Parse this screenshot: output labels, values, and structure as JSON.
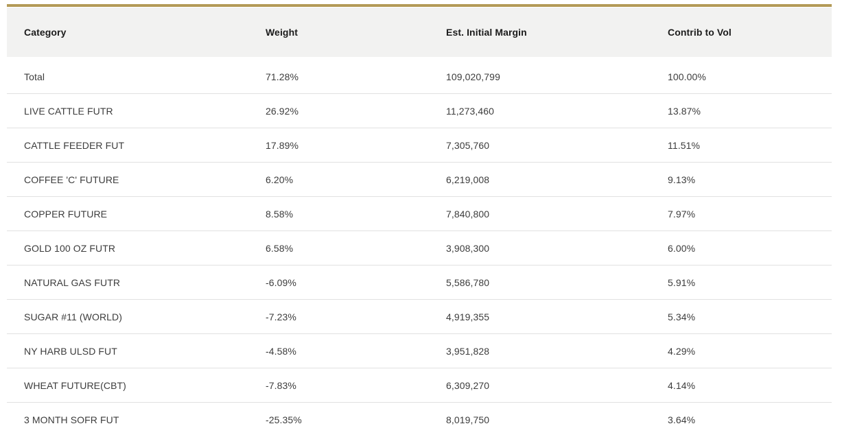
{
  "colors": {
    "top_rule": "#b39a57",
    "header_bg": "#f2f2f1",
    "divider": "#e1e1e1",
    "header_text": "#1b1b1b",
    "cell_text": "#3c3c3c"
  },
  "chart_data": {
    "type": "table",
    "columns": [
      "Category",
      "Weight",
      "Est. Initial Margin",
      "Contrib to Vol"
    ],
    "rows": [
      [
        "Total",
        "71.28%",
        "109,020,799",
        "100.00%"
      ],
      [
        "LIVE CATTLE FUTR",
        "26.92%",
        "11,273,460",
        "13.87%"
      ],
      [
        "CATTLE FEEDER FUT",
        "17.89%",
        "7,305,760",
        "11.51%"
      ],
      [
        "COFFEE 'C' FUTURE",
        "6.20%",
        "6,219,008",
        "9.13%"
      ],
      [
        "COPPER FUTURE",
        "8.58%",
        "7,840,800",
        "7.97%"
      ],
      [
        "GOLD 100 OZ FUTR",
        "6.58%",
        "3,908,300",
        "6.00%"
      ],
      [
        "NATURAL GAS FUTR",
        "-6.09%",
        "5,586,780",
        "5.91%"
      ],
      [
        "SUGAR #11 (WORLD)",
        "-7.23%",
        "4,919,355",
        "5.34%"
      ],
      [
        "NY HARB ULSD FUT",
        "-4.58%",
        "3,951,828",
        "4.29%"
      ],
      [
        "WHEAT FUTURE(CBT)",
        "-7.83%",
        "6,309,270",
        "4.14%"
      ],
      [
        "3 MONTH SOFR FUT",
        "-25.35%",
        "8,019,750",
        "3.64%"
      ]
    ]
  }
}
